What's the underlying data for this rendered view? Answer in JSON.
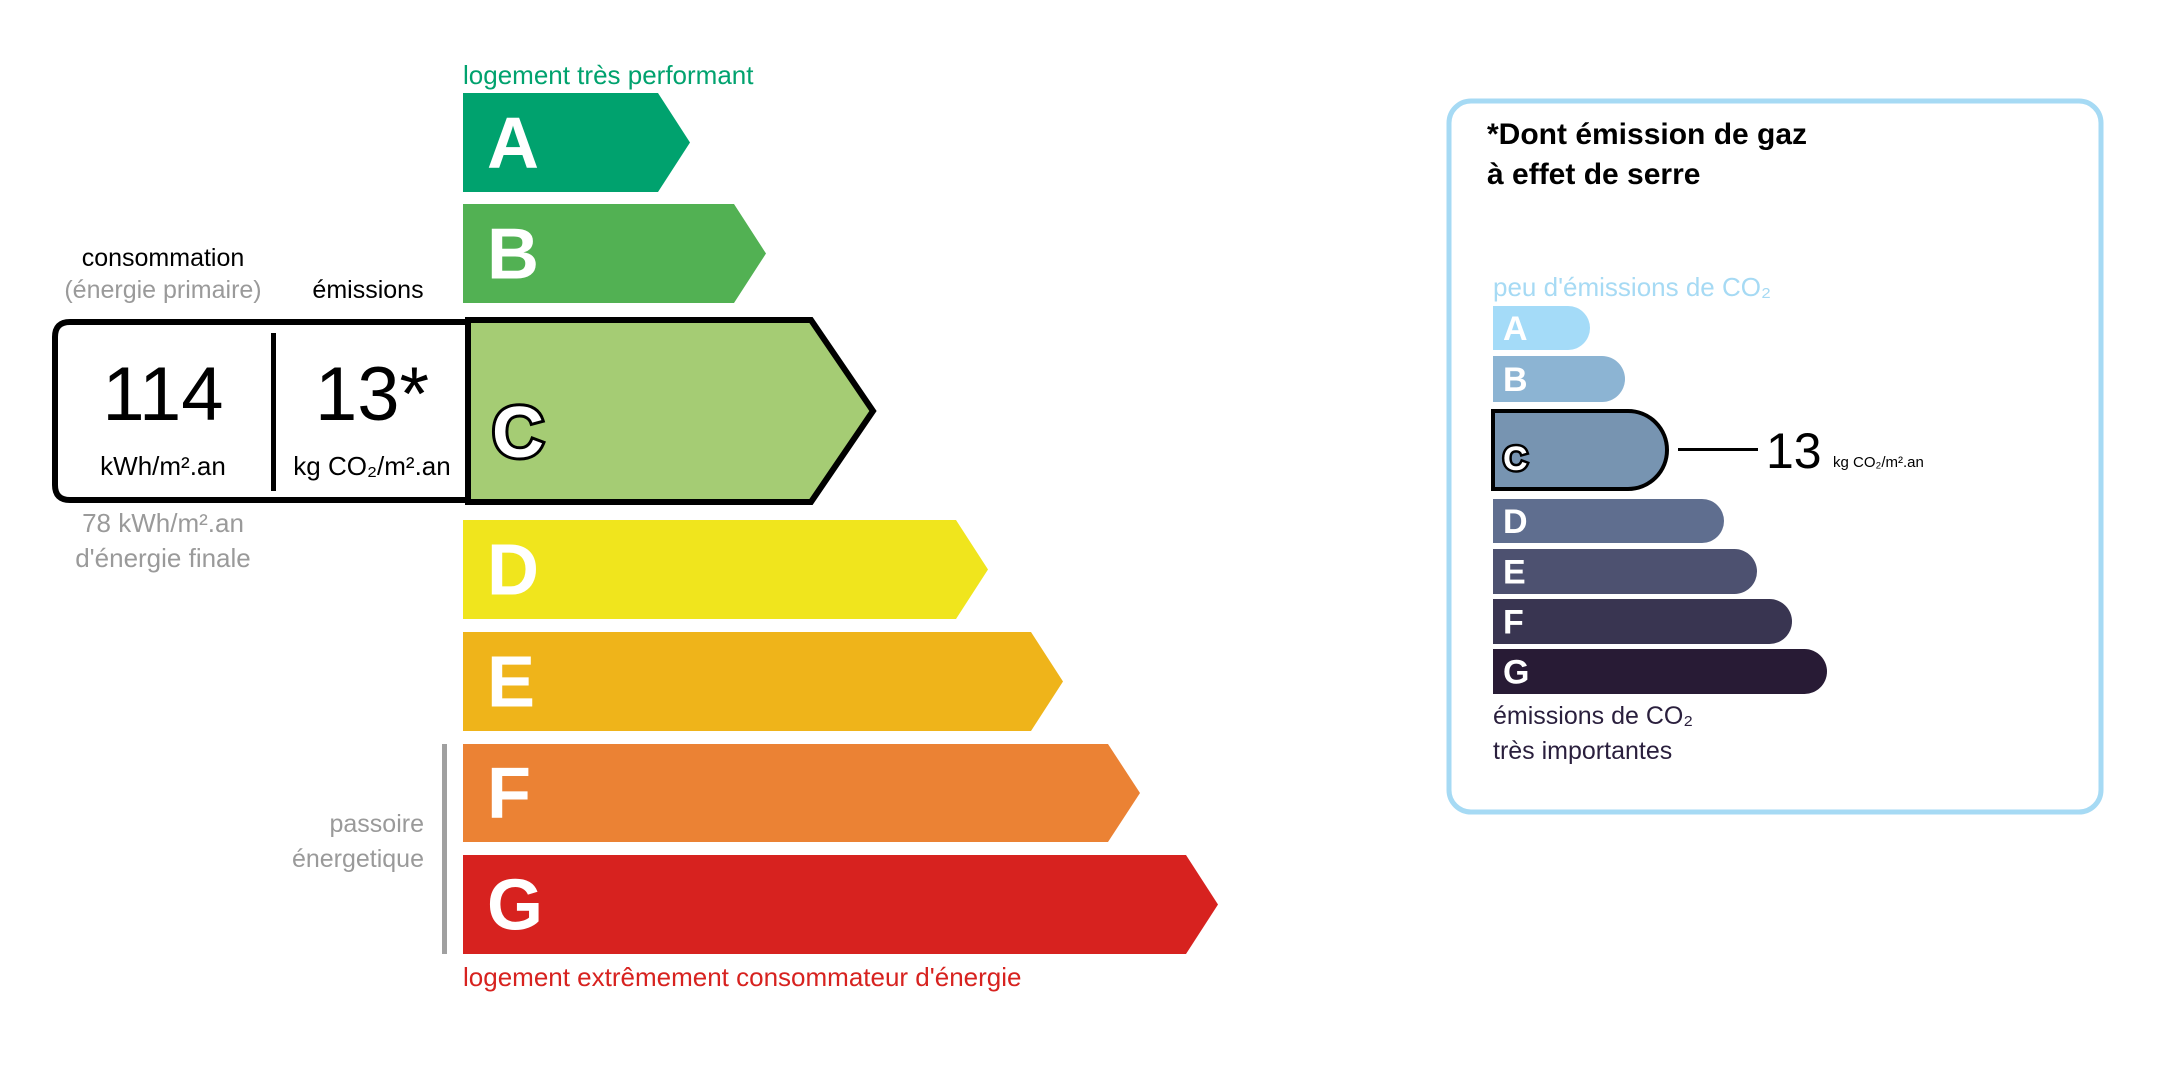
{
  "energy": {
    "top_label": "logement très performant",
    "bottom_label": "logement extrêmement consommateur d'énergie",
    "passoire": [
      "passoire",
      "énergetique"
    ],
    "classes": [
      "A",
      "B",
      "C",
      "D",
      "E",
      "F",
      "G"
    ],
    "current_class": "C",
    "colors": [
      "#00a26e",
      "#52b153",
      "#a5cc74",
      "#f0e51d",
      "#efb41a",
      "#eb8234",
      "#d7221f"
    ],
    "consumption_header": "consommation",
    "consumption_sub": "(énergie primaire)",
    "emissions_header": "émissions",
    "consumption_value": "114",
    "consumption_unit": "kWh/m².an",
    "emissions_value": "13*",
    "emissions_unit": "kg CO₂/m².an",
    "final_energy": "78 kWh/m².an",
    "final_energy_label": "d'énergie finale"
  },
  "ges": {
    "title_line1": "*Dont émission de gaz",
    "title_line2": "à effet de serre",
    "top_label": "peu d'émissions de CO₂",
    "bottom_label_line1": "émissions de CO₂",
    "bottom_label_line2": "très importantes",
    "classes": [
      "A",
      "B",
      "C",
      "D",
      "E",
      "F",
      "G"
    ],
    "current_class": "C",
    "colors": [
      "#a4dbf8",
      "#8cb4d3",
      "#7794b1",
      "#5f6e8f",
      "#4d5170",
      "#393551",
      "#281b35"
    ],
    "value": "13",
    "unit": "kg CO₂/m².an",
    "border_color": "#a6daf4"
  }
}
